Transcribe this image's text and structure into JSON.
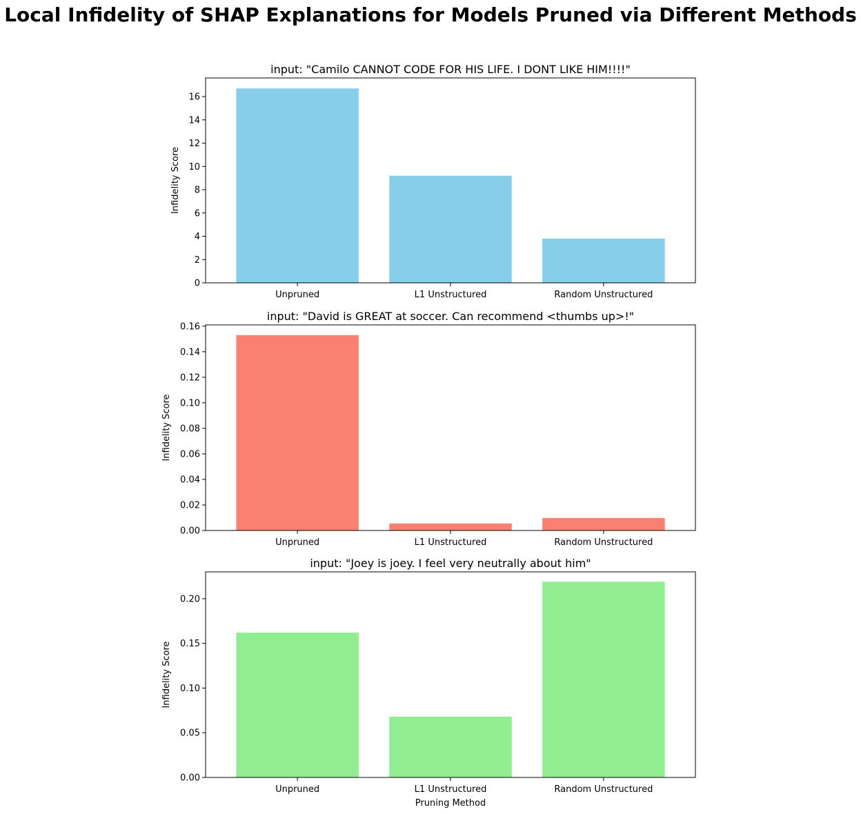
{
  "suptitle": "Local Infidelity of SHAP Explanations for Models Pruned via Different Methods",
  "chart_data": [
    {
      "type": "bar",
      "title": "input: \"Camilo CANNOT CODE FOR HIS LIFE. I DONT LIKE HIM!!!!\"",
      "categories": [
        "Unpruned",
        "L1 Unstructured",
        "Random Unstructured"
      ],
      "values": [
        16.7,
        9.2,
        3.8
      ],
      "xlabel": "",
      "ylabel": "Infidelity Score",
      "ylim": [
        0,
        17.6
      ],
      "yticks": [
        "0",
        "2",
        "4",
        "6",
        "8",
        "10",
        "12",
        "14",
        "16"
      ],
      "ytick_values": [
        0,
        2,
        4,
        6,
        8,
        10,
        12,
        14,
        16
      ],
      "color": "#87ceeb",
      "grid": false
    },
    {
      "type": "bar",
      "title": "input: \"David is GREAT at soccer. Can recommend <thumbs up>!\"",
      "categories": [
        "Unpruned",
        "L1 Unstructured",
        "Random Unstructured"
      ],
      "values": [
        0.153,
        0.0055,
        0.0098
      ],
      "xlabel": "",
      "ylabel": "Infidelity Score",
      "ylim": [
        0,
        0.161
      ],
      "yticks": [
        "0.00",
        "0.02",
        "0.04",
        "0.06",
        "0.08",
        "0.10",
        "0.12",
        "0.14",
        "0.16"
      ],
      "ytick_values": [
        0,
        0.02,
        0.04,
        0.06,
        0.08,
        0.1,
        0.12,
        0.14,
        0.16
      ],
      "color": "#fa8072",
      "grid": false
    },
    {
      "type": "bar",
      "title": "input: \"Joey is joey. I feel very neutrally about him\"",
      "categories": [
        "Unpruned",
        "L1 Unstructured",
        "Random Unstructured"
      ],
      "values": [
        0.162,
        0.068,
        0.219
      ],
      "xlabel": "Pruning Method",
      "ylabel": "Infidelity Score",
      "ylim": [
        0,
        0.23
      ],
      "yticks": [
        "0.00",
        "0.05",
        "0.10",
        "0.15",
        "0.20"
      ],
      "ytick_values": [
        0,
        0.05,
        0.1,
        0.15,
        0.2
      ],
      "color": "#90ee90",
      "grid": false
    }
  ]
}
